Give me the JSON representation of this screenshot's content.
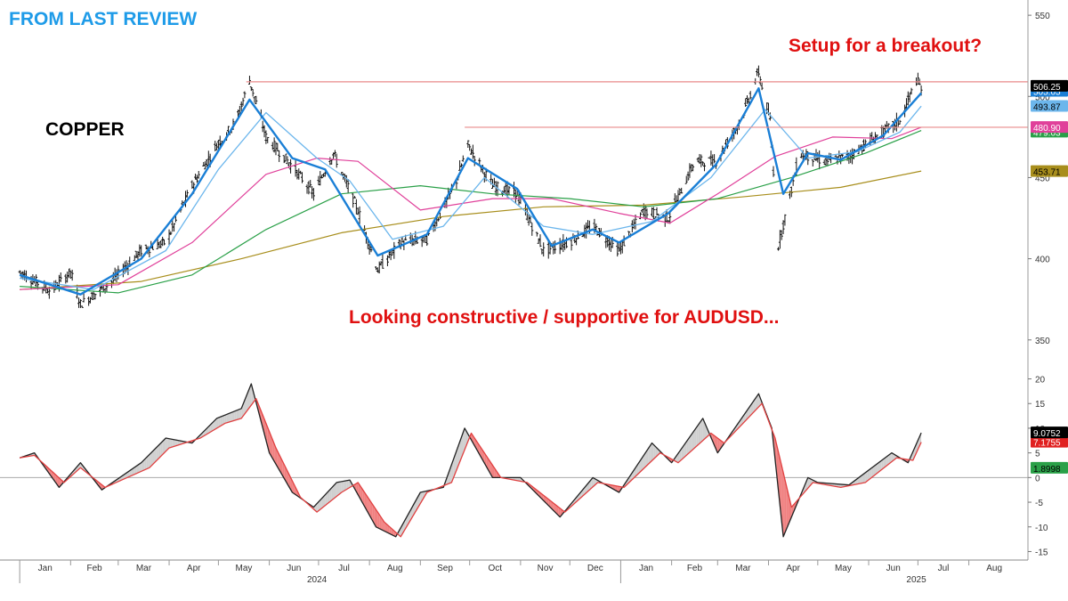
{
  "header": {
    "label": "FROM LAST REVIEW",
    "color": "#1e9be8"
  },
  "instrument": "COPPER",
  "annotations": [
    {
      "text": "Setup for a breakout?",
      "color": "#e01010"
    },
    {
      "text": "Looking constructive / supportive for AUDUSD...",
      "color": "#e01010"
    }
  ],
  "chart_data": [
    {
      "type": "candlestick",
      "title": "",
      "y_ticks": [
        350,
        400,
        450,
        500,
        550
      ],
      "ylim": [
        340,
        555
      ],
      "x_months": [
        "Jan",
        "Feb",
        "Mar",
        "Apr",
        "May",
        "Jun",
        "Jul",
        "Aug",
        "Sep",
        "Oct",
        "Nov",
        "Dec",
        "Jan",
        "Feb",
        "Mar",
        "Apr",
        "May",
        "Jun",
        "Jul",
        "Aug"
      ],
      "x_years": [
        "2024",
        "2025"
      ],
      "price_path": [
        {
          "x": "2024-01-01",
          "y": 392
        },
        {
          "x": "2024-01-20",
          "y": 380
        },
        {
          "x": "2024-02-01",
          "y": 392
        },
        {
          "x": "2024-02-07",
          "y": 372
        },
        {
          "x": "2024-02-25",
          "y": 385
        },
        {
          "x": "2024-03-15",
          "y": 405
        },
        {
          "x": "2024-03-30",
          "y": 410
        },
        {
          "x": "2024-04-15",
          "y": 445
        },
        {
          "x": "2024-04-30",
          "y": 470
        },
        {
          "x": "2024-05-12",
          "y": 485
        },
        {
          "x": "2024-05-20",
          "y": 510
        },
        {
          "x": "2024-05-30",
          "y": 475
        },
        {
          "x": "2024-06-15",
          "y": 457
        },
        {
          "x": "2024-06-28",
          "y": 440
        },
        {
          "x": "2024-07-10",
          "y": 465
        },
        {
          "x": "2024-07-25",
          "y": 430
        },
        {
          "x": "2024-08-06",
          "y": 393
        },
        {
          "x": "2024-08-20",
          "y": 410
        },
        {
          "x": "2024-09-05",
          "y": 412
        },
        {
          "x": "2024-09-22",
          "y": 445
        },
        {
          "x": "2024-09-30",
          "y": 470
        },
        {
          "x": "2024-10-15",
          "y": 445
        },
        {
          "x": "2024-10-30",
          "y": 440
        },
        {
          "x": "2024-11-15",
          "y": 405
        },
        {
          "x": "2024-11-30",
          "y": 410
        },
        {
          "x": "2024-12-15",
          "y": 420
        },
        {
          "x": "2024-12-31",
          "y": 405
        },
        {
          "x": "2025-01-15",
          "y": 430
        },
        {
          "x": "2025-01-30",
          "y": 425
        },
        {
          "x": "2025-02-15",
          "y": 460
        },
        {
          "x": "2025-02-28",
          "y": 460
        },
        {
          "x": "2025-03-15",
          "y": 485
        },
        {
          "x": "2025-03-26",
          "y": 515
        },
        {
          "x": "2025-04-02",
          "y": 485
        },
        {
          "x": "2025-04-07",
          "y": 408
        },
        {
          "x": "2025-04-20",
          "y": 465
        },
        {
          "x": "2025-05-05",
          "y": 460
        },
        {
          "x": "2025-05-20",
          "y": 463
        },
        {
          "x": "2025-06-05",
          "y": 475
        },
        {
          "x": "2025-06-20",
          "y": 485
        },
        {
          "x": "2025-06-30",
          "y": 510
        },
        {
          "x": "2025-07-03",
          "y": 505
        }
      ],
      "moving_averages": [
        {
          "name": "",
          "color": "#1a7fd6",
          "width": 2.4,
          "path": [
            {
              "x": "2024-01-01",
              "y": 390
            },
            {
              "x": "2024-02-07",
              "y": 378
            },
            {
              "x": "2024-03-15",
              "y": 400
            },
            {
              "x": "2024-04-15",
              "y": 440
            },
            {
              "x": "2024-05-20",
              "y": 498
            },
            {
              "x": "2024-06-15",
              "y": 462
            },
            {
              "x": "2024-07-05",
              "y": 455
            },
            {
              "x": "2024-08-06",
              "y": 402
            },
            {
              "x": "2024-09-05",
              "y": 415
            },
            {
              "x": "2024-09-30",
              "y": 462
            },
            {
              "x": "2024-10-30",
              "y": 443
            },
            {
              "x": "2024-11-20",
              "y": 408
            },
            {
              "x": "2024-12-15",
              "y": 418
            },
            {
              "x": "2024-12-31",
              "y": 410
            },
            {
              "x": "2025-01-30",
              "y": 428
            },
            {
              "x": "2025-02-28",
              "y": 458
            },
            {
              "x": "2025-03-26",
              "y": 505
            },
            {
              "x": "2025-04-10",
              "y": 440
            },
            {
              "x": "2025-04-25",
              "y": 465
            },
            {
              "x": "2025-05-15",
              "y": 461
            },
            {
              "x": "2025-06-10",
              "y": 476
            },
            {
              "x": "2025-07-03",
              "y": 502
            }
          ]
        },
        {
          "name": "",
          "color": "#6cb6ec",
          "width": 1.3,
          "path": [
            {
              "x": "2024-01-01",
              "y": 388
            },
            {
              "x": "2024-02-15",
              "y": 381
            },
            {
              "x": "2024-03-30",
              "y": 405
            },
            {
              "x": "2024-05-01",
              "y": 455
            },
            {
              "x": "2024-05-30",
              "y": 490
            },
            {
              "x": "2024-06-30",
              "y": 462
            },
            {
              "x": "2024-07-20",
              "y": 448
            },
            {
              "x": "2024-08-15",
              "y": 412
            },
            {
              "x": "2024-09-15",
              "y": 420
            },
            {
              "x": "2024-10-10",
              "y": 450
            },
            {
              "x": "2024-11-15",
              "y": 420
            },
            {
              "x": "2024-12-15",
              "y": 415
            },
            {
              "x": "2025-01-20",
              "y": 423
            },
            {
              "x": "2025-02-25",
              "y": 450
            },
            {
              "x": "2025-03-30",
              "y": 492
            },
            {
              "x": "2025-04-25",
              "y": 462
            },
            {
              "x": "2025-05-25",
              "y": 466
            },
            {
              "x": "2025-06-20",
              "y": 478
            },
            {
              "x": "2025-07-03",
              "y": 494
            }
          ]
        },
        {
          "name": "",
          "color": "#e0409a",
          "width": 1.2,
          "path": [
            {
              "x": "2024-01-01",
              "y": 381
            },
            {
              "x": "2024-03-01",
              "y": 384
            },
            {
              "x": "2024-04-15",
              "y": 410
            },
            {
              "x": "2024-05-30",
              "y": 452
            },
            {
              "x": "2024-06-30",
              "y": 462
            },
            {
              "x": "2024-07-25",
              "y": 460
            },
            {
              "x": "2024-09-01",
              "y": 430
            },
            {
              "x": "2024-10-15",
              "y": 437
            },
            {
              "x": "2024-11-20",
              "y": 437
            },
            {
              "x": "2024-12-31",
              "y": 428
            },
            {
              "x": "2025-01-31",
              "y": 422
            },
            {
              "x": "2025-03-01",
              "y": 440
            },
            {
              "x": "2025-04-05",
              "y": 463
            },
            {
              "x": "2025-05-10",
              "y": 475
            },
            {
              "x": "2025-06-15",
              "y": 474
            },
            {
              "x": "2025-07-03",
              "y": 481
            }
          ]
        },
        {
          "name": "",
          "color": "#2aa048",
          "width": 1.2,
          "path": [
            {
              "x": "2024-01-01",
              "y": 383
            },
            {
              "x": "2024-03-01",
              "y": 379
            },
            {
              "x": "2024-04-15",
              "y": 390
            },
            {
              "x": "2024-05-30",
              "y": 418
            },
            {
              "x": "2024-07-15",
              "y": 440
            },
            {
              "x": "2024-09-01",
              "y": 445
            },
            {
              "x": "2024-10-15",
              "y": 440
            },
            {
              "x": "2024-12-01",
              "y": 437
            },
            {
              "x": "2025-01-15",
              "y": 432
            },
            {
              "x": "2025-03-01",
              "y": 437
            },
            {
              "x": "2025-04-15",
              "y": 450
            },
            {
              "x": "2025-05-30",
              "y": 465
            },
            {
              "x": "2025-07-03",
              "y": 479
            }
          ]
        },
        {
          "name": "",
          "color": "#a88e1c",
          "width": 1.2,
          "path": [
            {
              "x": "2024-01-01",
              "y": 381
            },
            {
              "x": "2024-03-15",
              "y": 386
            },
            {
              "x": "2024-05-15",
              "y": 400
            },
            {
              "x": "2024-07-15",
              "y": 416
            },
            {
              "x": "2024-09-15",
              "y": 426
            },
            {
              "x": "2024-11-15",
              "y": 432
            },
            {
              "x": "2025-01-15",
              "y": 433
            },
            {
              "x": "2025-03-15",
              "y": 438
            },
            {
              "x": "2025-05-15",
              "y": 444
            },
            {
              "x": "2025-07-03",
              "y": 454
            }
          ]
        }
      ],
      "horizontal_levels": [
        {
          "y": 509,
          "color": "#e88a8a"
        },
        {
          "y": 481,
          "color": "#e88a8a"
        }
      ],
      "last_value_tags": [
        {
          "text": "506.25",
          "y": 506.25,
          "bg": "#000000",
          "fg": "#ffffff"
        },
        {
          "text": "505.05",
          "y": 503.2,
          "bg": "#1a7fd6",
          "fg": "#ffffff"
        },
        {
          "text": "493.87",
          "y": 493.87,
          "bg": "#6cb6ec",
          "fg": "#000000"
        },
        {
          "text": "480.90",
          "y": 480.9,
          "bg": "#e0409a",
          "fg": "#ffffff"
        },
        {
          "text": "479.03",
          "y": 478.0,
          "bg": "#2aa048",
          "fg": "#ffffff"
        },
        {
          "text": "453.71",
          "y": 453.71,
          "bg": "#a88e1c",
          "fg": "#000000"
        }
      ]
    },
    {
      "type": "line",
      "title": "",
      "y_ticks": [
        -15,
        -10,
        -5,
        0,
        5,
        10,
        15,
        20
      ],
      "ylim": [
        -16,
        21
      ],
      "zero_line": true,
      "series": [
        {
          "name": "",
          "color": "#222222",
          "path": [
            {
              "x": "2024-01-01",
              "y": 4
            },
            {
              "x": "2024-01-10",
              "y": 5
            },
            {
              "x": "2024-01-25",
              "y": -2
            },
            {
              "x": "2024-02-07",
              "y": 3
            },
            {
              "x": "2024-02-20",
              "y": -2.5
            },
            {
              "x": "2024-03-15",
              "y": 3
            },
            {
              "x": "2024-03-30",
              "y": 8
            },
            {
              "x": "2024-04-15",
              "y": 7
            },
            {
              "x": "2024-04-30",
              "y": 12
            },
            {
              "x": "2024-05-15",
              "y": 14
            },
            {
              "x": "2024-05-21",
              "y": 19
            },
            {
              "x": "2024-06-01",
              "y": 5
            },
            {
              "x": "2024-06-15",
              "y": -3
            },
            {
              "x": "2024-06-28",
              "y": -6
            },
            {
              "x": "2024-07-12",
              "y": -1
            },
            {
              "x": "2024-07-20",
              "y": -0.5
            },
            {
              "x": "2024-08-05",
              "y": -10
            },
            {
              "x": "2024-08-17",
              "y": -12
            },
            {
              "x": "2024-09-01",
              "y": -3
            },
            {
              "x": "2024-09-15",
              "y": -2
            },
            {
              "x": "2024-09-28",
              "y": 10
            },
            {
              "x": "2024-10-15",
              "y": 0
            },
            {
              "x": "2024-11-01",
              "y": 0
            },
            {
              "x": "2024-11-25",
              "y": -8
            },
            {
              "x": "2024-12-15",
              "y": 0
            },
            {
              "x": "2024-12-31",
              "y": -3
            },
            {
              "x": "2025-01-20",
              "y": 7
            },
            {
              "x": "2025-02-01",
              "y": 3
            },
            {
              "x": "2025-02-20",
              "y": 12
            },
            {
              "x": "2025-03-01",
              "y": 5
            },
            {
              "x": "2025-03-26",
              "y": 17
            },
            {
              "x": "2025-04-03",
              "y": 10
            },
            {
              "x": "2025-04-10",
              "y": -12
            },
            {
              "x": "2025-04-25",
              "y": 0
            },
            {
              "x": "2025-05-01",
              "y": -1
            },
            {
              "x": "2025-05-20",
              "y": -1.5
            },
            {
              "x": "2025-06-15",
              "y": 5
            },
            {
              "x": "2025-06-25",
              "y": 3
            },
            {
              "x": "2025-07-03",
              "y": 9.0752
            }
          ]
        },
        {
          "name": "",
          "color": "#e04040",
          "path": [
            {
              "x": "2024-01-01",
              "y": 4
            },
            {
              "x": "2024-01-10",
              "y": 4.5
            },
            {
              "x": "2024-01-28",
              "y": -1
            },
            {
              "x": "2024-02-07",
              "y": 2
            },
            {
              "x": "2024-02-22",
              "y": -2
            },
            {
              "x": "2024-03-20",
              "y": 2
            },
            {
              "x": "2024-04-01",
              "y": 6
            },
            {
              "x": "2024-04-20",
              "y": 8
            },
            {
              "x": "2024-05-05",
              "y": 11
            },
            {
              "x": "2024-05-15",
              "y": 12
            },
            {
              "x": "2024-05-24",
              "y": 16
            },
            {
              "x": "2024-06-05",
              "y": 6
            },
            {
              "x": "2024-06-20",
              "y": -4
            },
            {
              "x": "2024-06-30",
              "y": -7
            },
            {
              "x": "2024-07-15",
              "y": -3
            },
            {
              "x": "2024-07-25",
              "y": -1
            },
            {
              "x": "2024-08-10",
              "y": -9
            },
            {
              "x": "2024-08-20",
              "y": -12
            },
            {
              "x": "2024-09-05",
              "y": -3
            },
            {
              "x": "2024-09-20",
              "y": -1
            },
            {
              "x": "2024-10-02",
              "y": 9
            },
            {
              "x": "2024-10-20",
              "y": 0
            },
            {
              "x": "2024-11-05",
              "y": -1
            },
            {
              "x": "2024-11-28",
              "y": -7
            },
            {
              "x": "2024-12-18",
              "y": -1
            },
            {
              "x": "2025-01-03",
              "y": -2
            },
            {
              "x": "2025-01-25",
              "y": 5
            },
            {
              "x": "2025-02-05",
              "y": 3
            },
            {
              "x": "2025-02-25",
              "y": 9
            },
            {
              "x": "2025-03-05",
              "y": 7
            },
            {
              "x": "2025-03-28",
              "y": 15
            },
            {
              "x": "2025-04-05",
              "y": 8
            },
            {
              "x": "2025-04-15",
              "y": -6
            },
            {
              "x": "2025-04-28",
              "y": -1
            },
            {
              "x": "2025-05-15",
              "y": -2
            },
            {
              "x": "2025-05-30",
              "y": -1
            },
            {
              "x": "2025-06-18",
              "y": 4
            },
            {
              "x": "2025-06-28",
              "y": 3.5
            },
            {
              "x": "2025-07-03",
              "y": 7.1755
            }
          ]
        }
      ],
      "last_value_tags": [
        {
          "text": "9.0752",
          "y": 9.0752,
          "bg": "#000000",
          "fg": "#ffffff"
        },
        {
          "text": "7.1755",
          "y": 7.1755,
          "bg": "#e02020",
          "fg": "#ffffff"
        },
        {
          "text": "1.8998",
          "y": 1.8998,
          "bg": "#2aa048",
          "fg": "#000000"
        }
      ]
    }
  ]
}
